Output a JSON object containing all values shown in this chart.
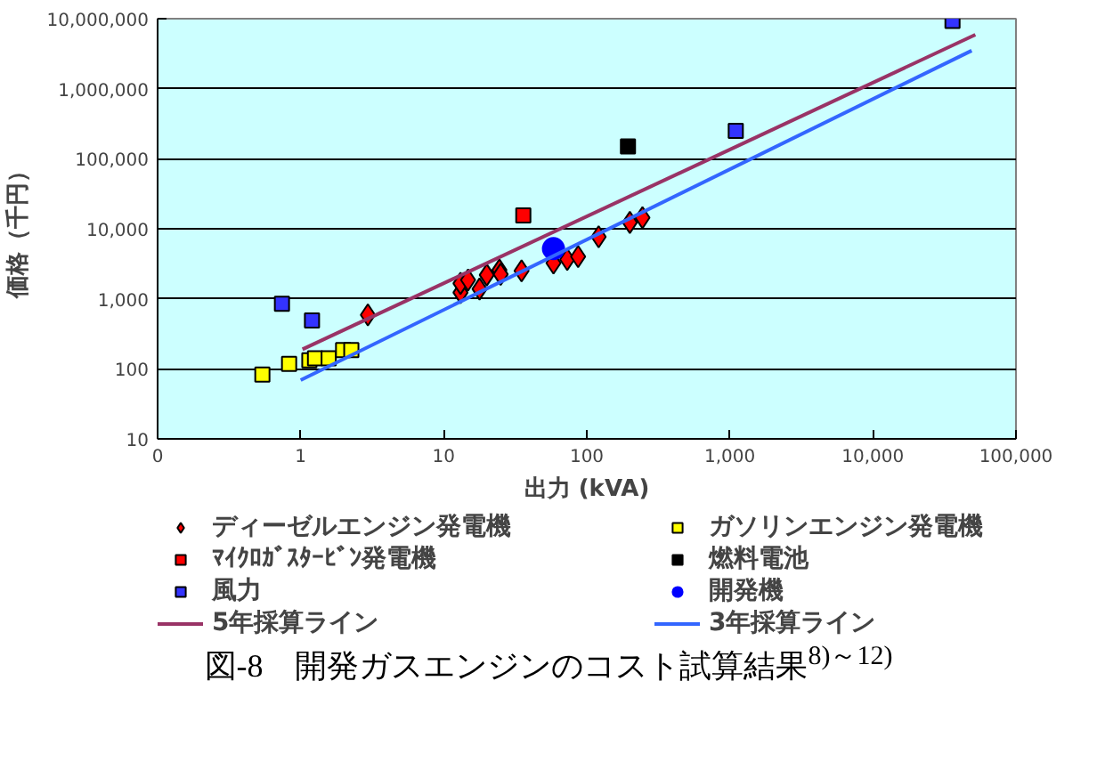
{
  "chart_data": {
    "type": "scatter",
    "title": "図-8　開発ガスエンジンのコスト試算結果$^{8)～12)}$",
    "xlabel": "出力 (kVA)",
    "ylabel": "価格（千円）",
    "log": "xy",
    "grid": "y",
    "legend": "bottom",
    "xlim": [
      0.1,
      100000
    ],
    "ylim": [
      10,
      10000000
    ],
    "xticks": [
      {
        "value": 0.1,
        "label": "0"
      },
      1,
      10,
      100,
      {
        "value": 1000,
        "label": "1,000"
      },
      {
        "value": 10000,
        "label": "10,000"
      },
      {
        "value": 100000,
        "label": "100,000"
      }
    ],
    "yticks": [
      10,
      100,
      {
        "value": 1000,
        "label": "1,000"
      },
      {
        "value": 10000,
        "label": "10,000"
      },
      {
        "value": 100000,
        "label": "100,000"
      },
      {
        "value": 1000000,
        "label": "1,000,000"
      },
      {
        "value": 10000000,
        "label": "10,000,000"
      }
    ],
    "series": [
      {
        "name": "ディーゼルエンジン発電機",
        "marker": "diamond",
        "color": "#ff0000",
        "x": [
          2.95,
          13.1,
          13.1,
          14.8,
          17.8,
          20,
          24.5,
          25,
          35,
          58.5,
          73,
          87,
          121,
          200,
          245
        ],
        "values": [
          590,
          1230,
          1660,
          1860,
          1380,
          2190,
          2570,
          2240,
          2510,
          3240,
          3640,
          4000,
          7670,
          12300,
          14400
        ]
      },
      {
        "name": "ガソリンエンジン発電機",
        "marker": "square",
        "color": "#ffff00",
        "x": [
          0.54,
          0.83,
          1.15,
          1.26,
          1.57,
          1.98,
          2.26
        ],
        "values": [
          83,
          118,
          132,
          141,
          141,
          186,
          186
        ]
      },
      {
        "name": "ﾏｲｸﾛｶﾞｽﾀｰﾋﾞﾝ発電機",
        "marker": "square",
        "color": "#ff0000",
        "x": [
          36
        ],
        "values": [
          15500
        ]
      },
      {
        "name": "燃料電池",
        "marker": "square",
        "color": "#000000",
        "x": [
          194
        ],
        "values": [
          150000
        ]
      },
      {
        "name": "風力",
        "marker": "square",
        "color": "#3333ff",
        "x": [
          0.74,
          1.2,
          1100,
          36000
        ],
        "values": [
          850,
          490,
          250000,
          9300000
        ]
      },
      {
        "name": "開発機",
        "marker": "circle",
        "color": "#0000ff",
        "x": [
          58.5
        ],
        "values": [
          5200
        ]
      },
      {
        "name": "5年採算ライン",
        "type": "line",
        "color": "#993366",
        "x": [
          1.03,
          52000
        ],
        "values": [
          190,
          5900000
        ]
      },
      {
        "name": "3年採算ライン",
        "type": "line",
        "color": "#3366ff",
        "x": [
          1,
          49000
        ],
        "values": [
          69,
          3500000
        ]
      }
    ]
  }
}
